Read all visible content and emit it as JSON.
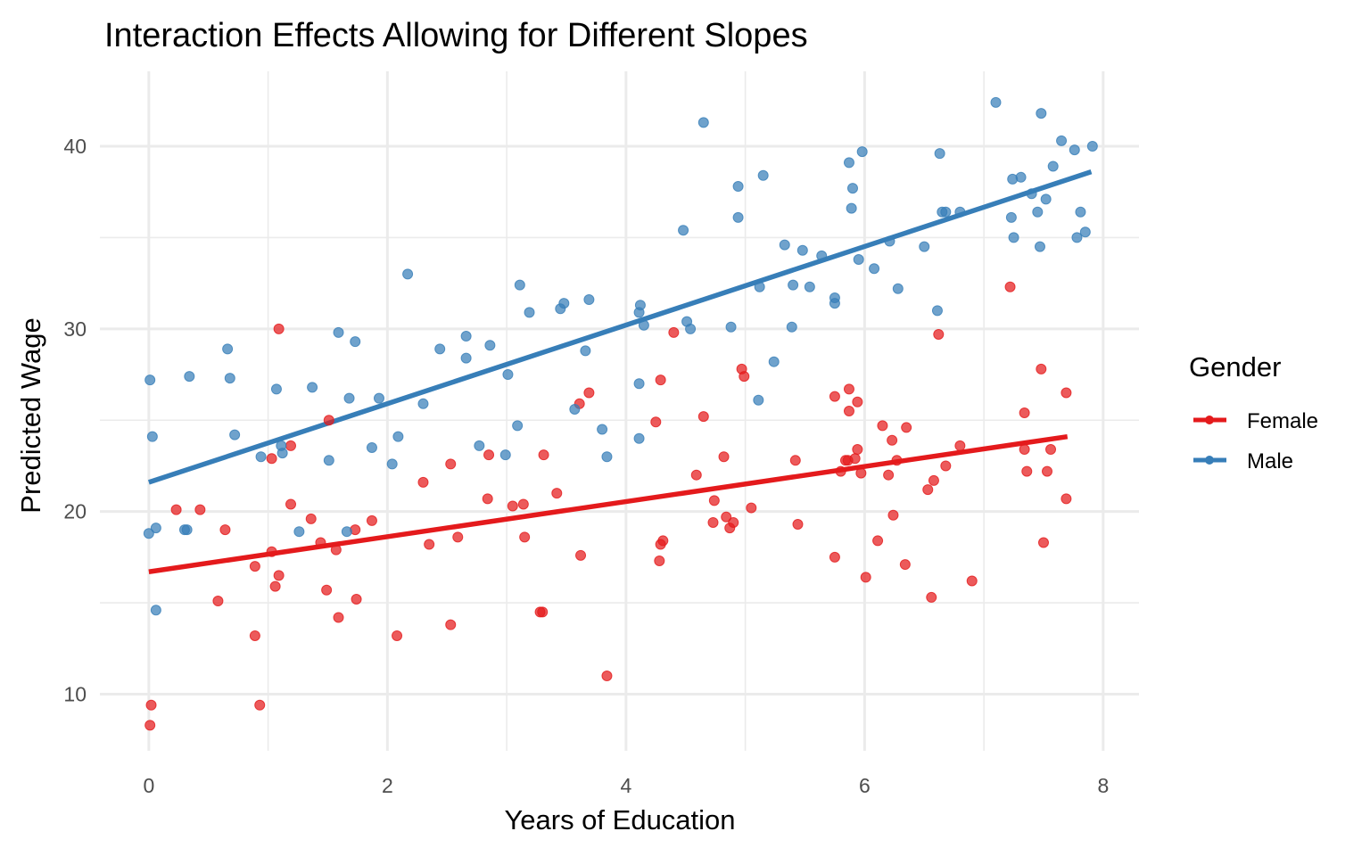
{
  "chart_data": {
    "type": "scatter",
    "title": "Interaction Effects Allowing for Different Slopes",
    "xlabel": "Years of Education",
    "ylabel": "Predicted Wage",
    "xlim": [
      -0.41,
      8.3
    ],
    "ylim": [
      6.9,
      44.1
    ],
    "x_ticks": [
      0,
      2,
      4,
      6,
      8
    ],
    "y_ticks": [
      10,
      20,
      30,
      40
    ],
    "x_tick_labels": [
      "0",
      "2",
      "4",
      "6",
      "8"
    ],
    "y_tick_labels": [
      "10",
      "20",
      "30",
      "40"
    ],
    "grid": true,
    "legend": {
      "title": "Gender",
      "position": "right"
    },
    "series": [
      {
        "name": "Female",
        "color": "#E41A1C",
        "fit_line": {
          "x": [
            0.0,
            7.7
          ],
          "y": [
            16.7,
            24.1
          ]
        },
        "points": [
          [
            0.02,
            9.4
          ],
          [
            0.01,
            8.3
          ],
          [
            0.23,
            20.1
          ],
          [
            0.43,
            20.1
          ],
          [
            0.58,
            15.1
          ],
          [
            0.64,
            19.0
          ],
          [
            0.89,
            17.0
          ],
          [
            0.89,
            13.2
          ],
          [
            0.93,
            9.4
          ],
          [
            1.03,
            17.8
          ],
          [
            1.03,
            22.9
          ],
          [
            1.06,
            15.9
          ],
          [
            1.09,
            16.5
          ],
          [
            1.09,
            30.0
          ],
          [
            1.19,
            23.6
          ],
          [
            1.19,
            20.4
          ],
          [
            1.36,
            19.6
          ],
          [
            1.44,
            18.3
          ],
          [
            1.49,
            15.7
          ],
          [
            1.51,
            25.0
          ],
          [
            1.57,
            17.9
          ],
          [
            1.59,
            14.2
          ],
          [
            1.73,
            19.0
          ],
          [
            1.74,
            15.2
          ],
          [
            1.87,
            19.5
          ],
          [
            2.08,
            13.2
          ],
          [
            2.3,
            21.6
          ],
          [
            2.35,
            18.2
          ],
          [
            2.53,
            13.8
          ],
          [
            2.53,
            22.6
          ],
          [
            2.59,
            18.6
          ],
          [
            2.84,
            20.7
          ],
          [
            2.85,
            23.1
          ],
          [
            3.05,
            20.3
          ],
          [
            3.14,
            20.4
          ],
          [
            3.15,
            18.6
          ],
          [
            3.28,
            14.5
          ],
          [
            3.3,
            14.5
          ],
          [
            3.31,
            23.1
          ],
          [
            3.42,
            21.0
          ],
          [
            3.61,
            25.9
          ],
          [
            3.62,
            17.6
          ],
          [
            3.69,
            26.5
          ],
          [
            3.84,
            11.0
          ],
          [
            4.25,
            24.9
          ],
          [
            4.28,
            17.3
          ],
          [
            4.29,
            18.2
          ],
          [
            4.29,
            27.2
          ],
          [
            4.31,
            18.4
          ],
          [
            4.4,
            29.8
          ],
          [
            4.59,
            22.0
          ],
          [
            4.65,
            25.2
          ],
          [
            4.73,
            19.4
          ],
          [
            4.74,
            20.6
          ],
          [
            4.82,
            23.0
          ],
          [
            4.84,
            19.7
          ],
          [
            4.87,
            19.1
          ],
          [
            4.9,
            19.4
          ],
          [
            4.97,
            27.8
          ],
          [
            4.99,
            27.4
          ],
          [
            5.05,
            20.2
          ],
          [
            5.42,
            22.8
          ],
          [
            5.44,
            19.3
          ],
          [
            5.75,
            17.5
          ],
          [
            5.75,
            26.3
          ],
          [
            5.8,
            22.2
          ],
          [
            5.84,
            22.8
          ],
          [
            5.86,
            22.8
          ],
          [
            5.87,
            26.7
          ],
          [
            5.87,
            25.5
          ],
          [
            5.92,
            22.9
          ],
          [
            5.94,
            23.4
          ],
          [
            5.94,
            26.0
          ],
          [
            5.97,
            22.1
          ],
          [
            6.01,
            16.4
          ],
          [
            6.11,
            18.4
          ],
          [
            6.15,
            24.7
          ],
          [
            6.2,
            22.0
          ],
          [
            6.23,
            23.9
          ],
          [
            6.24,
            19.8
          ],
          [
            6.27,
            22.8
          ],
          [
            6.34,
            17.1
          ],
          [
            6.35,
            24.6
          ],
          [
            6.53,
            21.2
          ],
          [
            6.56,
            15.3
          ],
          [
            6.58,
            21.7
          ],
          [
            6.62,
            29.7
          ],
          [
            6.68,
            22.5
          ],
          [
            6.8,
            23.6
          ],
          [
            6.9,
            16.2
          ],
          [
            7.22,
            32.3
          ],
          [
            7.34,
            25.4
          ],
          [
            7.34,
            23.4
          ],
          [
            7.36,
            22.2
          ],
          [
            7.48,
            27.8
          ],
          [
            7.5,
            18.3
          ],
          [
            7.53,
            22.2
          ],
          [
            7.56,
            23.4
          ],
          [
            7.69,
            26.5
          ],
          [
            7.69,
            20.7
          ]
        ]
      },
      {
        "name": "Male",
        "color": "#377EB8",
        "fit_line": {
          "x": [
            0.0,
            7.9
          ],
          "y": [
            21.6,
            38.6
          ]
        },
        "points": [
          [
            0.0,
            18.8
          ],
          [
            0.01,
            27.2
          ],
          [
            0.03,
            24.1
          ],
          [
            0.06,
            19.1
          ],
          [
            0.06,
            14.6
          ],
          [
            0.3,
            19.0
          ],
          [
            0.32,
            19.0
          ],
          [
            0.34,
            27.4
          ],
          [
            0.66,
            28.9
          ],
          [
            0.68,
            27.3
          ],
          [
            0.72,
            24.2
          ],
          [
            0.94,
            23.0
          ],
          [
            1.07,
            26.7
          ],
          [
            1.11,
            23.6
          ],
          [
            1.12,
            23.2
          ],
          [
            1.26,
            18.9
          ],
          [
            1.37,
            26.8
          ],
          [
            1.51,
            22.8
          ],
          [
            1.59,
            29.8
          ],
          [
            1.66,
            18.9
          ],
          [
            1.68,
            26.2
          ],
          [
            1.73,
            29.3
          ],
          [
            1.87,
            23.5
          ],
          [
            1.93,
            26.2
          ],
          [
            2.04,
            22.6
          ],
          [
            2.09,
            24.1
          ],
          [
            2.17,
            33.0
          ],
          [
            2.3,
            25.9
          ],
          [
            2.44,
            28.9
          ],
          [
            2.66,
            29.6
          ],
          [
            2.66,
            28.4
          ],
          [
            2.77,
            23.6
          ],
          [
            2.86,
            29.1
          ],
          [
            2.99,
            23.1
          ],
          [
            3.01,
            27.5
          ],
          [
            3.09,
            24.7
          ],
          [
            3.11,
            32.4
          ],
          [
            3.19,
            30.9
          ],
          [
            3.45,
            31.1
          ],
          [
            3.48,
            31.4
          ],
          [
            3.57,
            25.6
          ],
          [
            3.66,
            28.8
          ],
          [
            3.69,
            31.6
          ],
          [
            3.8,
            24.5
          ],
          [
            3.84,
            23.0
          ],
          [
            4.11,
            27.0
          ],
          [
            4.11,
            24.0
          ],
          [
            4.11,
            30.9
          ],
          [
            4.12,
            31.3
          ],
          [
            4.15,
            30.2
          ],
          [
            4.48,
            35.4
          ],
          [
            4.51,
            30.4
          ],
          [
            4.54,
            30.0
          ],
          [
            4.65,
            41.3
          ],
          [
            4.88,
            30.1
          ],
          [
            4.94,
            37.8
          ],
          [
            4.94,
            36.1
          ],
          [
            5.11,
            26.1
          ],
          [
            5.12,
            32.3
          ],
          [
            5.15,
            38.4
          ],
          [
            5.24,
            28.2
          ],
          [
            5.33,
            34.6
          ],
          [
            5.39,
            30.1
          ],
          [
            5.4,
            32.4
          ],
          [
            5.48,
            34.3
          ],
          [
            5.54,
            32.3
          ],
          [
            5.64,
            34.0
          ],
          [
            5.75,
            31.7
          ],
          [
            5.75,
            31.4
          ],
          [
            5.87,
            39.1
          ],
          [
            5.89,
            36.6
          ],
          [
            5.9,
            37.7
          ],
          [
            5.95,
            33.8
          ],
          [
            5.98,
            39.7
          ],
          [
            6.08,
            33.3
          ],
          [
            6.21,
            34.8
          ],
          [
            6.28,
            32.2
          ],
          [
            6.5,
            34.5
          ],
          [
            6.61,
            31.0
          ],
          [
            6.63,
            39.6
          ],
          [
            6.65,
            36.4
          ],
          [
            6.68,
            36.4
          ],
          [
            6.8,
            36.4
          ],
          [
            7.1,
            42.4
          ],
          [
            7.23,
            36.1
          ],
          [
            7.24,
            38.2
          ],
          [
            7.25,
            35.0
          ],
          [
            7.31,
            38.3
          ],
          [
            7.4,
            37.4
          ],
          [
            7.45,
            36.4
          ],
          [
            7.47,
            34.5
          ],
          [
            7.48,
            41.8
          ],
          [
            7.52,
            37.1
          ],
          [
            7.58,
            38.9
          ],
          [
            7.65,
            40.3
          ],
          [
            7.76,
            39.8
          ],
          [
            7.78,
            35.0
          ],
          [
            7.81,
            36.4
          ],
          [
            7.85,
            35.3
          ],
          [
            7.91,
            40.0
          ]
        ]
      }
    ]
  }
}
